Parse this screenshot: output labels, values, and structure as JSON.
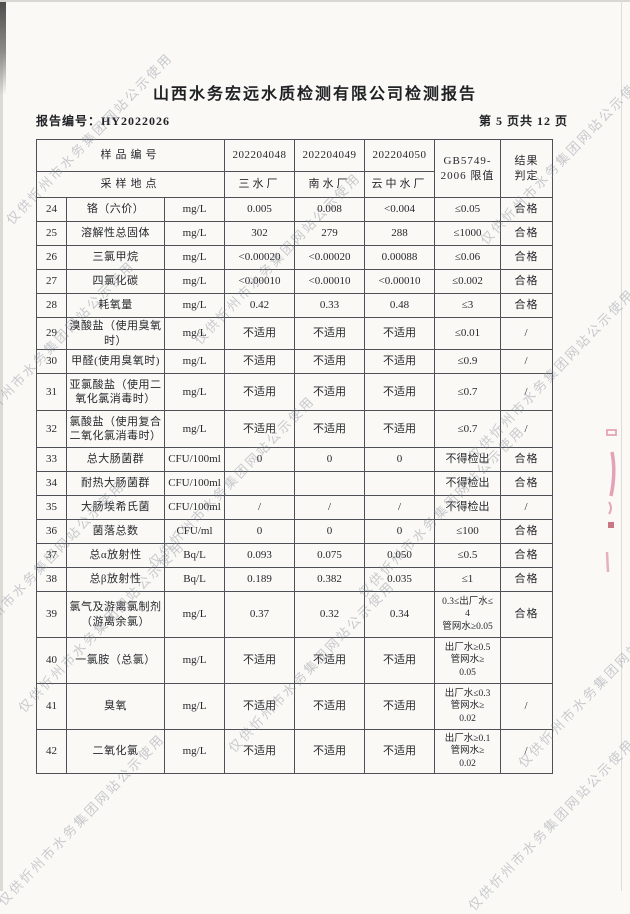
{
  "page": {
    "title": "山西水务宏远水质检测有限公司检测报告",
    "report_no": "报告编号：HY2022026",
    "page_indicator": "第 5 页共 12 页"
  },
  "watermark": {
    "text": "仅供忻州市水务集团网站公示使用"
  },
  "table": {
    "header": {
      "sample_id_label": "样品编号",
      "sample_location_label": "采样地点",
      "sample_ids": [
        "202204048",
        "202204049",
        "202204050"
      ],
      "locations": [
        "三水厂",
        "南水厂",
        "云中水厂"
      ],
      "limit_label": "GB5749-\n2006 限值",
      "result_label": "结果\n判定"
    },
    "rows": [
      {
        "num": "24",
        "param": "铬（六价）",
        "unit": "mg/L",
        "values": [
          "0.005",
          "0.008",
          "<0.004"
        ],
        "limit": "≤0.05",
        "result": "合格"
      },
      {
        "num": "25",
        "param": "溶解性总固体",
        "unit": "mg/L",
        "values": [
          "302",
          "279",
          "288"
        ],
        "limit": "≤1000",
        "result": "合格"
      },
      {
        "num": "26",
        "param": "三氯甲烷",
        "unit": "mg/L",
        "values": [
          "<0.00020",
          "<0.00020",
          "0.00088"
        ],
        "limit": "≤0.06",
        "result": "合格"
      },
      {
        "num": "27",
        "param": "四氯化碳",
        "unit": "mg/L",
        "values": [
          "<0.00010",
          "<0.00010",
          "<0.00010"
        ],
        "limit": "≤0.002",
        "result": "合格"
      },
      {
        "num": "28",
        "param": "耗氧量",
        "unit": "mg/L",
        "values": [
          "0.42",
          "0.33",
          "0.48"
        ],
        "limit": "≤3",
        "result": "合格"
      },
      {
        "num": "29",
        "param": "溴酸盐（使用臭氧时）",
        "unit": "mg/L",
        "values": [
          "不适用",
          "不适用",
          "不适用"
        ],
        "limit": "≤0.01",
        "result": "/"
      },
      {
        "num": "30",
        "param": "甲醛(使用臭氧时)",
        "unit": "mg/L",
        "values": [
          "不适用",
          "不适用",
          "不适用"
        ],
        "limit": "≤0.9",
        "result": "/"
      },
      {
        "num": "31",
        "param": "亚氯酸盐（使用二氧化氯消毒时）",
        "unit": "mg/L",
        "values": [
          "不适用",
          "不适用",
          "不适用"
        ],
        "limit": "≤0.7",
        "result": "/"
      },
      {
        "num": "32",
        "param": "氯酸盐（使用复合二氧化氯消毒时）",
        "unit": "mg/L",
        "values": [
          "不适用",
          "不适用",
          "不适用"
        ],
        "limit": "≤0.7",
        "result": "/"
      },
      {
        "num": "33",
        "param": "总大肠菌群",
        "unit": "CFU/100ml",
        "values": [
          "0",
          "0",
          "0"
        ],
        "limit": "不得检出",
        "result": "合格"
      },
      {
        "num": "34",
        "param": "耐热大肠菌群",
        "unit": "CFU/100ml",
        "values": [
          "",
          "",
          ""
        ],
        "limit": "不得检出",
        "result": "合格"
      },
      {
        "num": "35",
        "param": "大肠埃希氏菌",
        "unit": "CFU/100ml",
        "values": [
          "/",
          "/",
          "/"
        ],
        "limit": "不得检出",
        "result": "/"
      },
      {
        "num": "36",
        "param": "菌落总数",
        "unit": "CFU/ml",
        "values": [
          "0",
          "0",
          "0"
        ],
        "limit": "≤100",
        "result": "合格"
      },
      {
        "num": "37",
        "param": "总α放射性",
        "unit": "Bq/L",
        "values": [
          "0.093",
          "0.075",
          "0.050"
        ],
        "limit": "≤0.5",
        "result": "合格"
      },
      {
        "num": "38",
        "param": "总β放射性",
        "unit": "Bq/L",
        "values": [
          "0.189",
          "0.382",
          "0.035"
        ],
        "limit": "≤1",
        "result": "合格"
      },
      {
        "num": "39",
        "param": "氯气及游离氯制剂（游离余氯）",
        "unit": "mg/L",
        "values": [
          "0.37",
          "0.32",
          "0.34"
        ],
        "limit": "0.3≤出厂水≤\n4\n管网水≥0.05",
        "result": "合格"
      },
      {
        "num": "40",
        "param": "一氯胺（总氯）",
        "unit": "mg/L",
        "values": [
          "不适用",
          "不适用",
          "不适用"
        ],
        "limit": "出厂水≥0.5\n管网水≥\n0.05",
        "result": ""
      },
      {
        "num": "41",
        "param": "臭氧",
        "unit": "mg/L",
        "values": [
          "不适用",
          "不适用",
          "不适用"
        ],
        "limit": "出厂水≤0.3\n管网水≥\n0.02",
        "result": "/"
      },
      {
        "num": "42",
        "param": "二氧化氯",
        "unit": "mg/L",
        "values": [
          "不适用",
          "不适用",
          "不适用"
        ],
        "limit": "出厂水≥0.1\n管网水≥\n0.02",
        "result": "/"
      }
    ]
  }
}
